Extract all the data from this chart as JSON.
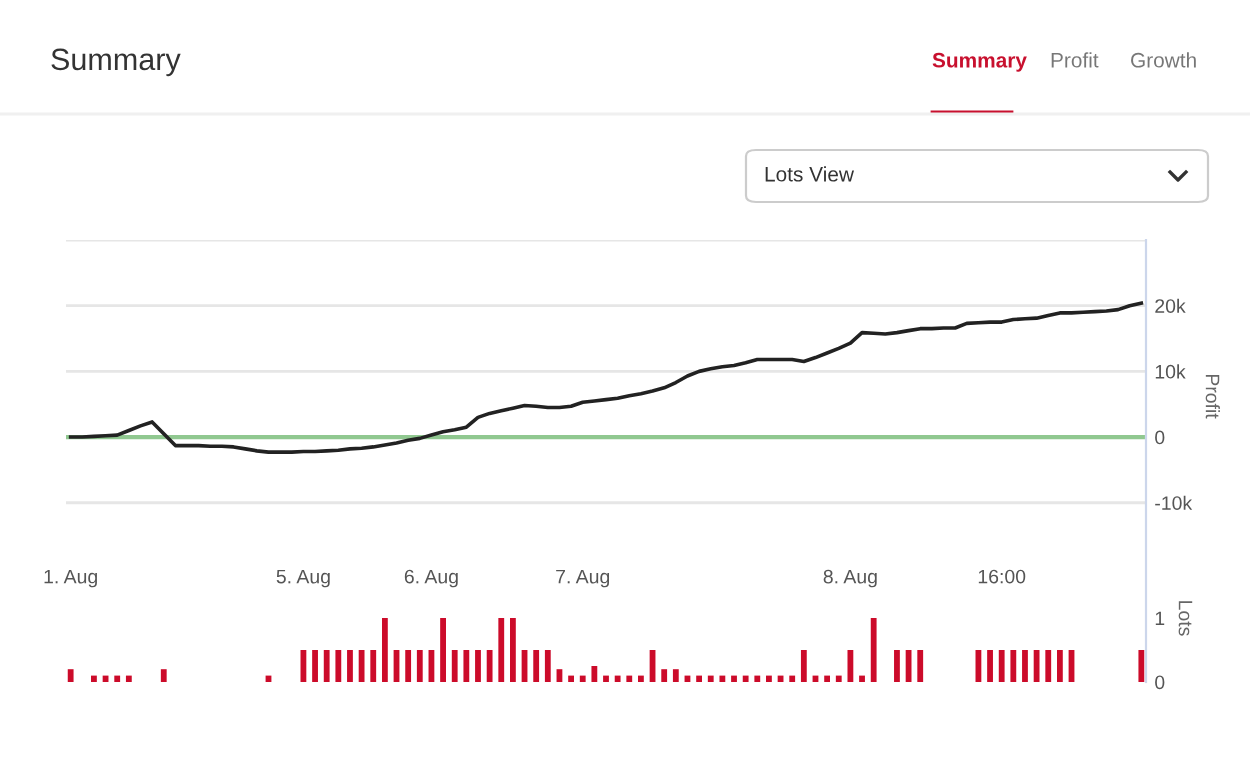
{
  "chart_data": [
    {
      "type": "line",
      "title": "Summary",
      "annotations": [
        "Summary",
        "Profit",
        "Growth",
        "Lots View"
      ],
      "ylabel": "Profit",
      "categories": [
        null,
        null,
        null,
        null,
        null,
        null,
        null,
        null,
        null,
        null,
        null,
        null,
        null,
        null,
        null,
        null,
        null,
        null,
        null,
        null,
        null,
        null,
        null,
        null,
        null,
        null,
        null,
        null,
        null,
        null,
        null,
        null,
        null,
        null,
        null,
        null,
        null,
        null,
        null,
        null,
        null,
        null,
        null,
        null,
        null,
        null,
        null,
        null,
        null,
        null,
        null,
        null,
        null,
        null,
        null,
        null,
        null,
        null,
        null,
        null,
        null,
        null,
        null,
        null,
        null,
        null,
        null,
        null,
        null,
        null,
        null,
        null,
        null,
        null,
        null,
        null,
        null,
        null,
        null,
        null,
        null,
        null,
        null,
        null,
        null,
        null,
        null,
        null,
        null,
        null,
        null,
        null,
        null
      ],
      "series": [
        {
          "color": "#222222",
          "values": [
            0,
            0,
            100,
            200,
            300,
            1000,
            1700,
            2300,
            500,
            -1300,
            -1300,
            -1300,
            -1400,
            -1400,
            -1500,
            -1800,
            -2100,
            -2300,
            -2300,
            -2300,
            -2200,
            -2200,
            -2100,
            -2000,
            -1800,
            -1700,
            -1500,
            -1200,
            -900,
            -500,
            -200,
            300,
            800,
            1100,
            1500,
            3000,
            3600,
            4000,
            4400,
            4800,
            4700,
            4500,
            4500,
            4700,
            5300,
            5500,
            5700,
            5900,
            6300,
            6600,
            7000,
            7500,
            8300,
            9300,
            10000,
            10400,
            10700,
            10900,
            11300,
            11800,
            11800,
            11800,
            11800,
            11500,
            12100,
            12800,
            13500,
            14300,
            15900,
            15800,
            15700,
            15900,
            16200,
            16500,
            16500,
            16600,
            16600,
            17300,
            17400,
            17500,
            17500,
            17900,
            18000,
            18100,
            18500,
            18900,
            18900,
            19000,
            19100,
            19200,
            19400,
            20000,
            20400
          ]
        }
      ],
      "ylim": [
        -17500,
        30000
      ],
      "yticks": [
        {
          "value": -10000,
          "label": "-10k"
        },
        0,
        {
          "value": 10000,
          "label": "10k"
        },
        {
          "value": 20000,
          "label": "20k"
        },
        {
          "value": 30000,
          "label": null
        }
      ],
      "ref_lines": [
        {
          "axis": "y",
          "value": 0,
          "color": "#90c890"
        }
      ],
      "grid": "y",
      "tick_labels": "y"
    },
    {
      "type": "bar",
      "ylabel": "Lots",
      "color": "#cc0b2a",
      "categories": [
        "1. Aug",
        null,
        null,
        null,
        null,
        null,
        null,
        null,
        null,
        null,
        null,
        null,
        null,
        null,
        null,
        null,
        null,
        null,
        null,
        null,
        "5. Aug",
        null,
        null,
        null,
        null,
        null,
        null,
        null,
        null,
        null,
        null,
        "6. Aug",
        null,
        null,
        null,
        null,
        null,
        null,
        null,
        null,
        null,
        null,
        null,
        null,
        "7. Aug",
        null,
        null,
        null,
        null,
        null,
        null,
        null,
        null,
        null,
        null,
        null,
        null,
        null,
        null,
        null,
        null,
        null,
        null,
        null,
        null,
        null,
        null,
        "8. Aug",
        null,
        null,
        null,
        null,
        null,
        null,
        null,
        null,
        null,
        null,
        null,
        null,
        "16:00",
        null,
        null,
        null,
        null,
        null,
        null,
        null,
        null,
        null,
        null,
        null,
        null
      ],
      "values": [
        0.2,
        0,
        0.1,
        0.1,
        0.1,
        0.1,
        0,
        0,
        0.2,
        0,
        0,
        0,
        0,
        0,
        0,
        0,
        0,
        0.1,
        0,
        0,
        0.5,
        0.5,
        0.5,
        0.5,
        0.5,
        0.5,
        0.5,
        1,
        0.5,
        0.5,
        0.5,
        0.5,
        1,
        0.5,
        0.5,
        0.5,
        0.5,
        1,
        1,
        0.5,
        0.5,
        0.5,
        0.2,
        0.1,
        0.1,
        0.25,
        0.1,
        0.1,
        0.1,
        0.1,
        0.5,
        0.2,
        0.2,
        0.1,
        0.1,
        0.1,
        0.1,
        0.1,
        0.1,
        0.1,
        0.1,
        0.1,
        0.1,
        0.5,
        0.1,
        0.1,
        0.1,
        0.5,
        0.1,
        1,
        0,
        0.5,
        0.5,
        0.5,
        0,
        0,
        0,
        0,
        0.5,
        0.5,
        0.5,
        0.5,
        0.5,
        0.5,
        0.5,
        0.5,
        0.5,
        0,
        0,
        0,
        0,
        0,
        0.5
      ],
      "ylim": [
        0,
        2
      ],
      "yticks": [
        0,
        1
      ]
    }
  ]
}
